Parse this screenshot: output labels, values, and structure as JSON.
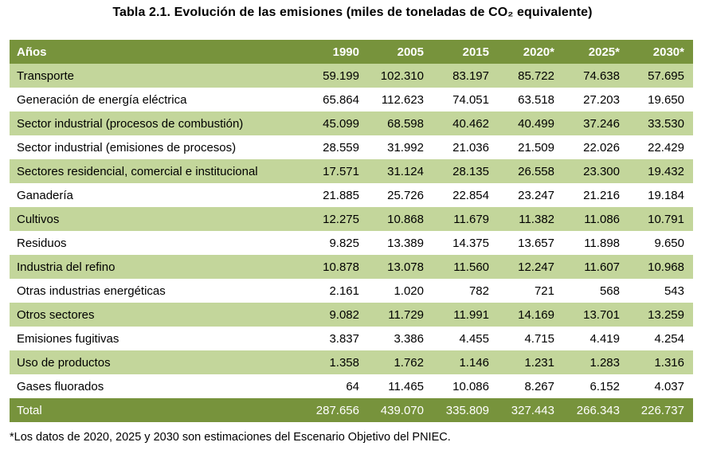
{
  "title": "Tabla 2.1. Evolución de las emisiones (miles de toneladas de CO₂ equivalente)",
  "table": {
    "headers": [
      "Años",
      "1990",
      "2005",
      "2015",
      "2020*",
      "2025*",
      "2030*"
    ],
    "rows": [
      [
        "Transporte",
        "59.199",
        "102.310",
        "83.197",
        "85.722",
        "74.638",
        "57.695"
      ],
      [
        "Generación de energía eléctrica",
        "65.864",
        "112.623",
        "74.051",
        "63.518",
        "27.203",
        "19.650"
      ],
      [
        "Sector industrial (procesos de combustión)",
        "45.099",
        "68.598",
        "40.462",
        "40.499",
        "37.246",
        "33.530"
      ],
      [
        "Sector industrial (emisiones de procesos)",
        "28.559",
        "31.992",
        "21.036",
        "21.509",
        "22.026",
        "22.429"
      ],
      [
        "Sectores residencial, comercial e institucional",
        "17.571",
        "31.124",
        "28.135",
        "26.558",
        "23.300",
        "19.432"
      ],
      [
        "Ganadería",
        "21.885",
        "25.726",
        "22.854",
        "23.247",
        "21.216",
        "19.184"
      ],
      [
        "Cultivos",
        "12.275",
        "10.868",
        "11.679",
        "11.382",
        "11.086",
        "10.791"
      ],
      [
        "Residuos",
        "9.825",
        "13.389",
        "14.375",
        "13.657",
        "11.898",
        "9.650"
      ],
      [
        "Industria del refino",
        "10.878",
        "13.078",
        "11.560",
        "12.247",
        "11.607",
        "10.968"
      ],
      [
        "Otras industrias energéticas",
        "2.161",
        "1.020",
        "782",
        "721",
        "568",
        "543"
      ],
      [
        "Otros sectores",
        "9.082",
        "11.729",
        "11.991",
        "14.169",
        "13.701",
        "13.259"
      ],
      [
        "Emisiones fugitivas",
        "3.837",
        "3.386",
        "4.455",
        "4.715",
        "4.419",
        "4.254"
      ],
      [
        "Uso de productos",
        "1.358",
        "1.762",
        "1.146",
        "1.231",
        "1.283",
        "1.316"
      ],
      [
        "Gases fluorados",
        "64",
        "11.465",
        "10.086",
        "8.267",
        "6.152",
        "4.037"
      ]
    ],
    "total": [
      "Total",
      "287.656",
      "439.070",
      "335.809",
      "327.443",
      "266.343",
      "226.737"
    ]
  },
  "footnote": "*Los datos de 2020, 2025 y 2030 son estimaciones del Escenario Objetivo del PNIEC.",
  "colors": {
    "header_green": "#77933c",
    "band_green": "#c3d69b",
    "white": "#ffffff"
  }
}
